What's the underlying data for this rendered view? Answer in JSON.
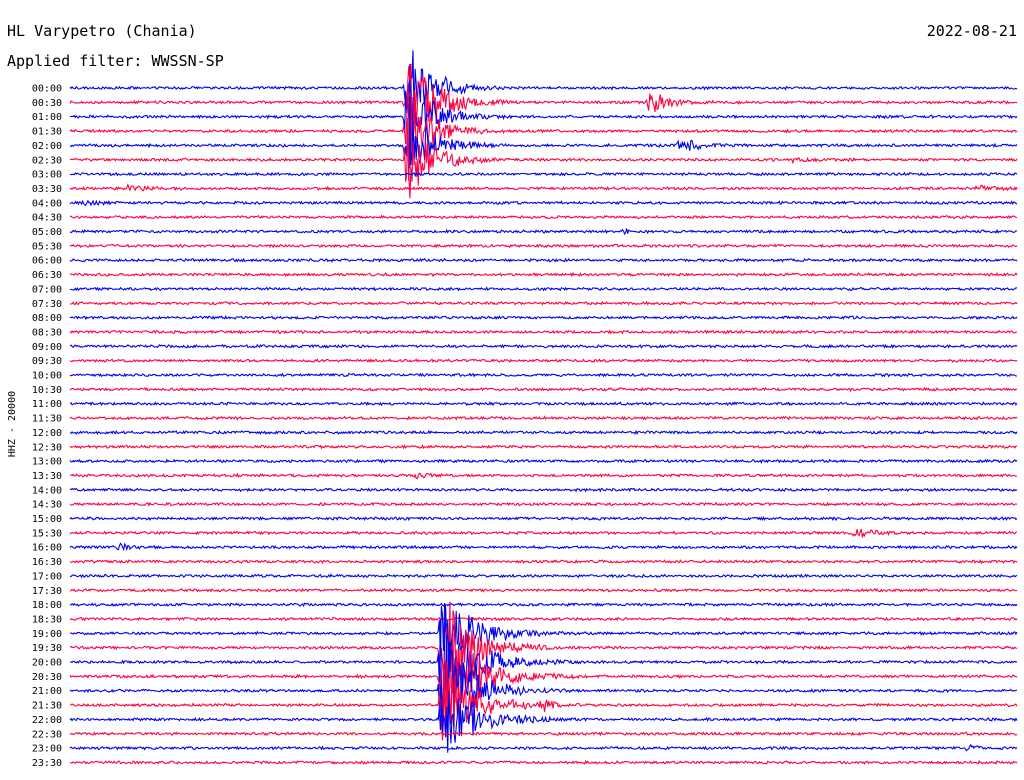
{
  "header": {
    "station": "HL Varypetro (Chania)",
    "date": "2022-08-21",
    "filter": "Applied filter: WWSSN-SP"
  },
  "axis": {
    "y_label": "HHZ - 20000"
  },
  "colors": {
    "trace_a": "#0000ee",
    "trace_b": "#ff0040",
    "text": "#000000",
    "background": "#ffffff"
  },
  "chart_data": {
    "type": "line",
    "subtype": "helicorder",
    "row_interval_minutes": 30,
    "row_labels": [
      "00:00",
      "00:30",
      "01:00",
      "01:30",
      "02:00",
      "02:30",
      "03:00",
      "03:30",
      "04:00",
      "04:30",
      "05:00",
      "05:30",
      "06:00",
      "06:30",
      "07:00",
      "07:30",
      "08:00",
      "08:30",
      "09:00",
      "09:30",
      "10:00",
      "10:30",
      "11:00",
      "11:30",
      "12:00",
      "12:30",
      "13:00",
      "13:30",
      "14:00",
      "14:30",
      "15:00",
      "15:30",
      "16:00",
      "16:30",
      "17:00",
      "17:30",
      "18:00",
      "18:30",
      "19:00",
      "19:30",
      "20:00",
      "20:30",
      "21:00",
      "21:30",
      "22:00",
      "22:30",
      "23:00",
      "23:30"
    ],
    "events": [
      {
        "row": "00:30",
        "minute": 11.1,
        "amplitude": 31,
        "duration_min": 1.6
      },
      {
        "row": "00:30",
        "minute": 18.4,
        "amplitude": 18,
        "duration_min": 1.0
      },
      {
        "row": "02:00",
        "minute": 19.2,
        "amplitude": 11,
        "duration_min": 1.2
      },
      {
        "row": "02:30",
        "minute": 22.8,
        "amplitude": 3,
        "duration_min": 1.0
      },
      {
        "row": "03:30",
        "minute": 1.8,
        "amplitude": 3,
        "duration_min": 1.3
      },
      {
        "row": "03:30",
        "minute": 28.8,
        "amplitude": 4,
        "duration_min": 0.9
      },
      {
        "row": "04:00",
        "minute": 0.5,
        "amplitude": 3,
        "duration_min": 0.9
      },
      {
        "row": "05:00",
        "minute": 17.6,
        "amplitude": 3,
        "duration_min": 0.4
      },
      {
        "row": "13:30",
        "minute": 11.0,
        "amplitude": 3,
        "duration_min": 1.0
      },
      {
        "row": "15:30",
        "minute": 24.9,
        "amplitude": 8,
        "duration_min": 0.9
      },
      {
        "row": "16:00",
        "minute": 1.6,
        "amplitude": 4,
        "duration_min": 0.6
      },
      {
        "row": "19:00",
        "minute": 11.8,
        "amplitude": 14,
        "duration_min": 1.4
      },
      {
        "row": "19:30",
        "minute": 11.8,
        "amplitude": 28,
        "duration_min": 1.6
      },
      {
        "row": "20:00",
        "minute": 11.8,
        "amplitude": 36,
        "duration_min": 1.8
      },
      {
        "row": "20:30",
        "minute": 11.8,
        "amplitude": 38,
        "duration_min": 2.2
      },
      {
        "row": "21:00",
        "minute": 11.8,
        "amplitude": 30,
        "duration_min": 1.4
      },
      {
        "row": "21:30",
        "minute": 15.0,
        "amplitude": 7,
        "duration_min": 0.6
      },
      {
        "row": "23:00",
        "minute": 28.5,
        "amplitude": 4,
        "duration_min": 0.5
      }
    ],
    "large_events": [
      {
        "start_row": "00:00",
        "span_rows": [
          "00:00",
          "00:30",
          "01:00",
          "01:30",
          "02:00",
          "02:30"
        ],
        "minute": 10.7,
        "amplitude": 60,
        "duration_min": 1.5
      },
      {
        "start_row": "19:00",
        "span_rows": [
          "19:00",
          "19:30",
          "20:00",
          "20:30",
          "21:00",
          "21:30",
          "22:00"
        ],
        "minute": 11.8,
        "amplitude": 55,
        "duration_min": 2.0
      }
    ]
  }
}
